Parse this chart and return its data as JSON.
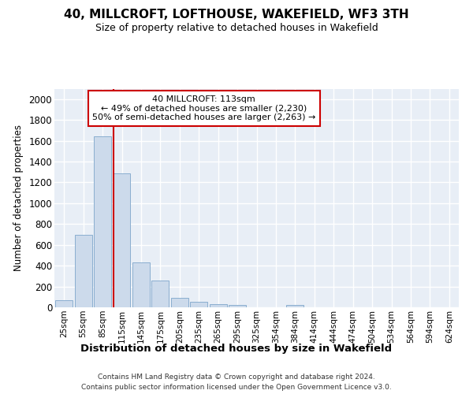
{
  "title": "40, MILLCROFT, LOFTHOUSE, WAKEFIELD, WF3 3TH",
  "subtitle": "Size of property relative to detached houses in Wakefield",
  "xlabel": "Distribution of detached houses by size in Wakefield",
  "ylabel": "Number of detached properties",
  "bar_color": "#ccdaeb",
  "bar_edge_color": "#8aaecf",
  "highlight_line_color": "#cc0000",
  "annotation_line1": "40 MILLCROFT: 113sqm",
  "annotation_line2": "← 49% of detached houses are smaller (2,230)",
  "annotation_line3": "50% of semi-detached houses are larger (2,263) →",
  "annotation_box_facecolor": "#ffffff",
  "annotation_box_edgecolor": "#cc0000",
  "footer_text": "Contains HM Land Registry data © Crown copyright and database right 2024.\nContains public sector information licensed under the Open Government Licence v3.0.",
  "categories": [
    "25sqm",
    "55sqm",
    "85sqm",
    "115sqm",
    "145sqm",
    "175sqm",
    "205sqm",
    "235sqm",
    "265sqm",
    "295sqm",
    "325sqm",
    "354sqm",
    "384sqm",
    "414sqm",
    "444sqm",
    "474sqm",
    "504sqm",
    "534sqm",
    "564sqm",
    "594sqm",
    "624sqm"
  ],
  "values": [
    65,
    695,
    1640,
    1285,
    435,
    255,
    90,
    55,
    30,
    25,
    0,
    0,
    20,
    0,
    0,
    0,
    0,
    0,
    0,
    0,
    0
  ],
  "highlight_bar_index": 3,
  "ylim": [
    0,
    2100
  ],
  "yticks": [
    0,
    200,
    400,
    600,
    800,
    1000,
    1200,
    1400,
    1600,
    1800,
    2000
  ],
  "plot_bg_color": "#e8eef6",
  "grid_color": "#ffffff",
  "fig_bg_color": "#ffffff"
}
